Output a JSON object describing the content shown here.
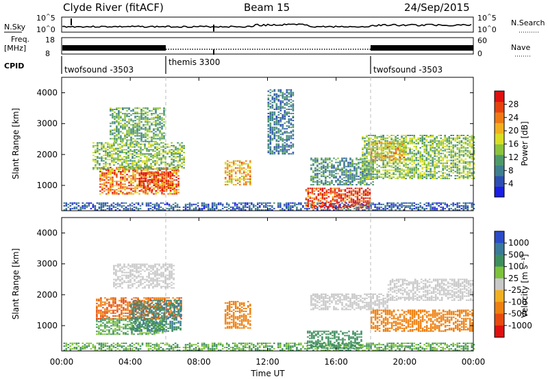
{
  "header": {
    "station": "Clyde River (fitACF)",
    "beam": "Beam 15",
    "date": "24/Sep/2015"
  },
  "strip_labels": {
    "nsky": "N.Sky",
    "nsky_hi": "10^5",
    "nsky_lo": "10^0",
    "nsearch": "N.Search",
    "nsearch_hi": "10^5",
    "nsearch_lo": "10^0",
    "freq": "Freq.",
    "freq_unit": "[MHz]",
    "freq_hi": "18",
    "freq_lo": "8",
    "nave": "Nave",
    "nave_hi": "60",
    "nave_lo": "0",
    "cpid": "CPID",
    "modes": [
      {
        "label": "twofsound -3503",
        "start_hour": 0
      },
      {
        "label": "themis 3300",
        "start_hour": 6
      },
      {
        "label": "twofsound -3503",
        "start_hour": 18
      }
    ]
  },
  "chart_data": [
    {
      "type": "heatmap",
      "name": "power",
      "ylabel": "Slant Range [km]",
      "xlabel": "Time UT",
      "x_ticks": [
        "00:00",
        "04:00",
        "08:00",
        "12:00",
        "16:00",
        "20:00",
        "00:00"
      ],
      "x_range_hours": [
        0,
        24
      ],
      "y_ticks": [
        1000,
        2000,
        3000,
        4000
      ],
      "ylim": [
        180,
        4500
      ],
      "colorbar": {
        "label": "Power [dB]",
        "ticks": [
          "4",
          "8",
          "12",
          "16",
          "20",
          "24",
          "28"
        ],
        "range": [
          0,
          32
        ],
        "colors": [
          "#1a1ee6",
          "#2d4fb3",
          "#3f7f8f",
          "#4f9a6a",
          "#8cc43c",
          "#d9de22",
          "#f2b01e",
          "#ef7a14",
          "#e6420e",
          "#e01010"
        ]
      },
      "regions": [
        {
          "t": [
            0.1,
            24.0
          ],
          "r": [
            180,
            450
          ],
          "v": 6
        },
        {
          "t": [
            2.2,
            6.8
          ],
          "r": [
            700,
            1600
          ],
          "v": 24
        },
        {
          "t": [
            4.5,
            6.5
          ],
          "r": [
            800,
            1400
          ],
          "v": 28
        },
        {
          "t": [
            1.8,
            7.2
          ],
          "r": [
            1500,
            2400
          ],
          "v": 14
        },
        {
          "t": [
            2.8,
            6.0
          ],
          "r": [
            2400,
            3500
          ],
          "v": 12
        },
        {
          "t": [
            9.5,
            11.0
          ],
          "r": [
            1000,
            1800
          ],
          "v": 20
        },
        {
          "t": [
            12.0,
            13.5
          ],
          "r": [
            2000,
            4100
          ],
          "v": 8
        },
        {
          "t": [
            14.2,
            18.0
          ],
          "r": [
            250,
            900
          ],
          "v": 28
        },
        {
          "t": [
            14.5,
            18.2
          ],
          "r": [
            1000,
            1900
          ],
          "v": 10
        },
        {
          "t": [
            17.5,
            24.0
          ],
          "r": [
            1200,
            2600
          ],
          "v": 14
        },
        {
          "t": [
            18.0,
            20.0
          ],
          "r": [
            1800,
            2400
          ],
          "v": 20
        }
      ]
    },
    {
      "type": "heatmap",
      "name": "velocity",
      "ylabel": "Slant Range [km]",
      "xlabel": "Time UT",
      "x_ticks": [
        "00:00",
        "04:00",
        "08:00",
        "12:00",
        "16:00",
        "20:00",
        "00:00"
      ],
      "x_range_hours": [
        0,
        24
      ],
      "y_ticks": [
        1000,
        2000,
        3000,
        4000
      ],
      "ylim": [
        180,
        4500
      ],
      "colorbar": {
        "label": "Velocity [m s⁻¹]",
        "ticks": [
          "1000",
          "500",
          "100",
          "25",
          "-25",
          "-100",
          "-500",
          "-1000"
        ],
        "colors": [
          "#2b4cc8",
          "#3a7a9a",
          "#3e8f5e",
          "#7cc23a",
          "#c8c8c8",
          "#f0b020",
          "#ee8010",
          "#e84a10",
          "#e01010"
        ]
      },
      "regions": [
        {
          "t": [
            0.1,
            24.0
          ],
          "r": [
            180,
            450
          ],
          "v": 100
        },
        {
          "t": [
            2.0,
            6.0
          ],
          "r": [
            700,
            1200
          ],
          "v": 100
        },
        {
          "t": [
            2.0,
            7.0
          ],
          "r": [
            1200,
            1900
          ],
          "v": -500
        },
        {
          "t": [
            4.0,
            7.0
          ],
          "r": [
            800,
            1800
          ],
          "v": 500
        },
        {
          "t": [
            3.0,
            6.5
          ],
          "r": [
            2200,
            3000
          ],
          "v": 0
        },
        {
          "t": [
            9.5,
            11.0
          ],
          "r": [
            900,
            1800
          ],
          "v": -300
        },
        {
          "t": [
            14.3,
            17.5
          ],
          "r": [
            250,
            800
          ],
          "v": 300
        },
        {
          "t": [
            14.5,
            19.0
          ],
          "r": [
            1500,
            2000
          ],
          "v": 0
        },
        {
          "t": [
            19.0,
            24.0
          ],
          "r": [
            1800,
            2500
          ],
          "v": 0
        },
        {
          "t": [
            18.0,
            24.0
          ],
          "r": [
            800,
            1500
          ],
          "v": -300
        }
      ]
    }
  ]
}
